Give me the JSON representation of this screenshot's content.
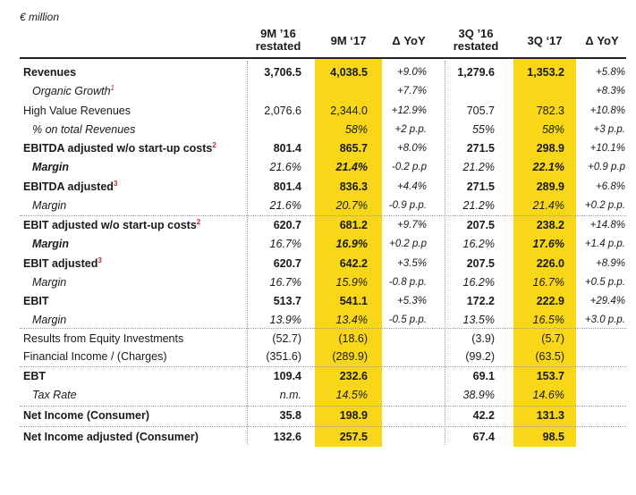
{
  "unit_label": "€ million",
  "headers": {
    "col0_line1": "9M ’16",
    "col0_line2": "restated",
    "col1": "9M ‘17",
    "col2": "Δ YoY",
    "col3_line1": "3Q ’16",
    "col3_line2": "restated",
    "col4": "3Q ‘17",
    "col5": "Δ YoY"
  },
  "colors": {
    "highlight": "#f8d719",
    "footnote": "#c0272d"
  },
  "rows": [
    {
      "label": "Revenues",
      "sup": "",
      "vals": [
        "3,706.5",
        "4,038.5",
        "+9.0%",
        "1,279.6",
        "1,353.2",
        "+5.8%"
      ]
    },
    {
      "label": "Organic Growth",
      "sup": "1",
      "vals": [
        "",
        "",
        "+7.7%",
        "",
        "",
        "+8.3%"
      ]
    },
    {
      "label": "High Value Revenues",
      "sup": "",
      "vals": [
        "2,076.6",
        "2,344.0",
        "+12.9%",
        "705.7",
        "782.3",
        "+10.8%"
      ]
    },
    {
      "label": "% on total Revenues",
      "sup": "",
      "vals": [
        "",
        "58%",
        "+2 p.p.",
        "55%",
        "58%",
        "+3 p.p."
      ]
    },
    {
      "label": "EBITDA adjusted w/o start-up costs",
      "sup": "2",
      "vals": [
        "801.4",
        "865.7",
        "+8.0%",
        "271.5",
        "298.9",
        "+10.1%"
      ]
    },
    {
      "label": "Margin",
      "sup": "",
      "vals": [
        "21.6%",
        "21.4%",
        "-0.2 p.p",
        "21.2%",
        "22.1%",
        "+0.9 p.p"
      ]
    },
    {
      "label": "EBITDA adjusted",
      "sup": "3",
      "vals": [
        "801.4",
        "836.3",
        "+4.4%",
        "271.5",
        "289.9",
        "+6.8%"
      ]
    },
    {
      "label": "Margin",
      "sup": "",
      "vals": [
        "21.6%",
        "20.7%",
        "-0.9 p.p.",
        "21.2%",
        "21.4%",
        "+0.2 p.p."
      ]
    },
    {
      "label": "EBIT adjusted w/o start-up costs",
      "sup": "2",
      "vals": [
        "620.7",
        "681.2",
        "+9.7%",
        "207.5",
        "238.2",
        "+14.8%"
      ]
    },
    {
      "label": "Margin",
      "sup": "",
      "vals": [
        "16.7%",
        "16.9%",
        "+0.2 p.p",
        "16.2%",
        "17.6%",
        "+1.4 p.p."
      ]
    },
    {
      "label": "EBIT adjusted",
      "sup": "3",
      "vals": [
        "620.7",
        "642.2",
        "+3.5%",
        "207.5",
        "226.0",
        "+8.9%"
      ]
    },
    {
      "label": "Margin",
      "sup": "",
      "vals": [
        "16.7%",
        "15.9%",
        "-0.8 p.p.",
        "16.2%",
        "16.7%",
        "+0.5 p.p."
      ]
    },
    {
      "label": "EBIT",
      "sup": "",
      "vals": [
        "513.7",
        "541.1",
        "+5.3%",
        "172.2",
        "222.9",
        "+29.4%"
      ]
    },
    {
      "label": "Margin",
      "sup": "",
      "vals": [
        "13.9%",
        "13.4%",
        "-0.5 p.p.",
        "13.5%",
        "16.5%",
        "+3.0 p.p."
      ]
    },
    {
      "label": "Results from Equity Investments",
      "sup": "",
      "vals": [
        "(52.7)",
        "(18.6)",
        "",
        "(3.9)",
        "(5.7)",
        ""
      ]
    },
    {
      "label": "Financial Income / (Charges)",
      "sup": "",
      "vals": [
        "(351.6)",
        "(289.9)",
        "",
        "(99.2)",
        "(63.5)",
        ""
      ]
    },
    {
      "label": "EBT",
      "sup": "",
      "vals": [
        "109.4",
        "232.6",
        "",
        "69.1",
        "153.7",
        ""
      ]
    },
    {
      "label": "Tax Rate",
      "sup": "",
      "vals": [
        "n.m.",
        "14.5%",
        "",
        "38.9%",
        "14.6%",
        ""
      ]
    },
    {
      "label": "Net Income (Consumer)",
      "sup": "",
      "vals": [
        "35.8",
        "198.9",
        "",
        "42.2",
        "131.3",
        ""
      ]
    },
    {
      "label": "Net Income adjusted (Consumer)",
      "sup": "",
      "vals": [
        "132.6",
        "257.5",
        "",
        "67.4",
        "98.5",
        ""
      ]
    }
  ]
}
